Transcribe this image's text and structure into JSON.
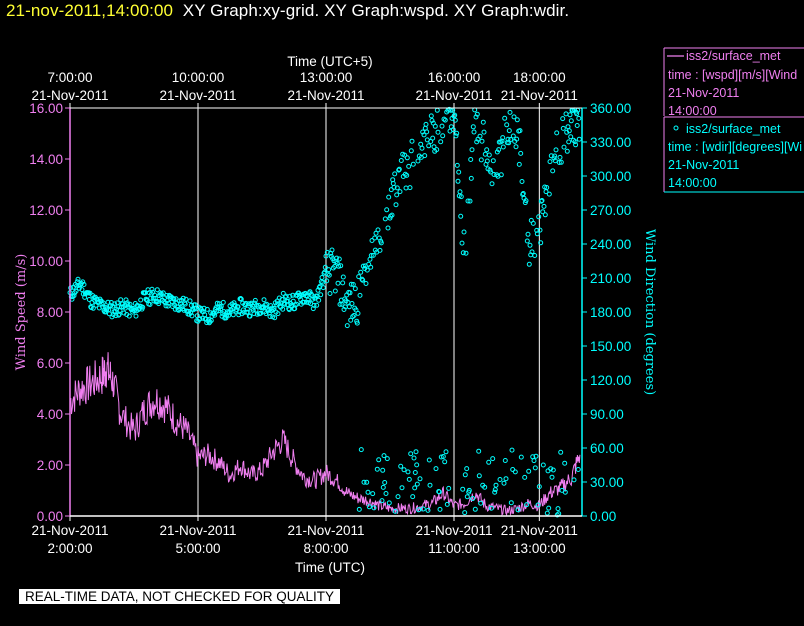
{
  "header": {
    "timestamp": "21-nov-2011,14:00:00",
    "graphs": "XY Graph:xy-grid.  XY Graph:wspd.  XY Graph:wdir."
  },
  "colors": {
    "background": "#000000",
    "axis": "#ffffff",
    "wspd": "#f07ff0",
    "wdir": "#00ffff",
    "timestamp": "#ffff33"
  },
  "banner": "REAL-TIME DATA, NOT CHECKED FOR QUALITY",
  "legend": {
    "wspd": {
      "line1": "iss2/surface_met",
      "line2": "time : [wspd][m/s][Wind",
      "line3": "21-Nov-2011",
      "line4": "14:00:00"
    },
    "wdir": {
      "line1": "iss2/surface_met",
      "line2": "time : [wdir][degrees][Wi",
      "line3": "21-Nov-2011",
      "line4": "14:00:00"
    }
  },
  "chart_data": {
    "type": "line",
    "top_axis_label": "Time (UTC+5)",
    "top_ticks": [
      {
        "time": "7:00:00",
        "date": "21-Nov-2011",
        "utc_hour": 2
      },
      {
        "time": "10:00:00",
        "date": "21-Nov-2011",
        "utc_hour": 5
      },
      {
        "time": "13:00:00",
        "date": "21-Nov-2011",
        "utc_hour": 8
      },
      {
        "time": "16:00:00",
        "date": "21-Nov-2011",
        "utc_hour": 11
      },
      {
        "time": "18:00:00",
        "date": "21-Nov-2011",
        "utc_hour": 13
      }
    ],
    "xlabel": "Time (UTC)",
    "x_ticks": [
      {
        "date": "21-Nov-2011",
        "time": "2:00:00",
        "utc_hour": 2
      },
      {
        "date": "21-Nov-2011",
        "time": "5:00:00",
        "utc_hour": 5
      },
      {
        "date": "21-Nov-2011",
        "time": "8:00:00",
        "utc_hour": 8
      },
      {
        "date": "21-Nov-2011",
        "time": "11:00:00",
        "utc_hour": 11
      },
      {
        "date": "21-Nov-2011",
        "time": "13:00:00",
        "utc_hour": 13
      }
    ],
    "xlim_utc_hours": [
      2.0,
      14.0
    ],
    "grid_verticals_utc_hours": [
      5,
      8,
      11,
      13
    ],
    "ylabel_left": "Wind Speed (m/s)",
    "ylim_left": [
      0,
      16
    ],
    "yticks_left": [
      "0.00",
      "2.00",
      "4.00",
      "6.00",
      "8.00",
      "10.00",
      "12.00",
      "14.00",
      "16.00"
    ],
    "ylabel_right": "Wind Direction (degrees)",
    "ylim_right": [
      0,
      360
    ],
    "yticks_right": [
      "0.00",
      "30.00",
      "60.00",
      "90.00",
      "120.00",
      "150.00",
      "180.00",
      "210.00",
      "240.00",
      "270.00",
      "300.00",
      "330.00",
      "360.00"
    ],
    "series": [
      {
        "name": "iss2/surface_met time : [wspd][m/s]",
        "axis": "left",
        "style": "line",
        "x": [
          2.0,
          2.25,
          2.5,
          2.75,
          2.85,
          3.0,
          3.2,
          3.5,
          3.75,
          4.0,
          4.25,
          4.5,
          4.75,
          5.0,
          5.25,
          5.5,
          5.75,
          6.0,
          6.25,
          6.5,
          6.75,
          7.0,
          7.25,
          7.5,
          7.75,
          8.0,
          8.25,
          8.5,
          8.75,
          9.0,
          9.25,
          9.5,
          9.75,
          10.0,
          10.25,
          10.5,
          10.75,
          11.0,
          11.25,
          11.5,
          11.75,
          12.0,
          12.25,
          12.5,
          12.75,
          13.0,
          13.25,
          13.5,
          13.75,
          13.95
        ],
        "y": [
          4.5,
          5.0,
          5.2,
          5.5,
          5.8,
          5.3,
          4.0,
          3.3,
          4.2,
          4.6,
          4.3,
          3.7,
          3.3,
          2.3,
          2.4,
          2.1,
          1.6,
          2.0,
          1.6,
          1.8,
          2.5,
          3.0,
          2.1,
          1.5,
          1.4,
          1.7,
          1.4,
          0.9,
          0.7,
          0.6,
          0.4,
          0.3,
          0.3,
          0.3,
          0.4,
          0.5,
          0.9,
          0.4,
          0.5,
          0.9,
          0.4,
          0.3,
          0.2,
          0.3,
          0.5,
          0.4,
          0.9,
          1.1,
          1.5,
          2.4
        ]
      },
      {
        "name": "iss2/surface_met time : [wdir][degrees]",
        "axis": "right",
        "style": "circles",
        "x": [
          2.0,
          2.25,
          2.5,
          2.75,
          3.0,
          3.25,
          3.5,
          3.75,
          4.0,
          4.25,
          4.5,
          4.75,
          5.0,
          5.25,
          5.5,
          5.75,
          6.0,
          6.25,
          6.5,
          6.75,
          7.0,
          7.25,
          7.5,
          7.75,
          8.0,
          8.25,
          8.5,
          8.75,
          9.0,
          9.25,
          9.5,
          9.75,
          10.0,
          10.25,
          10.5,
          10.75,
          11.0,
          11.25,
          11.5,
          11.75,
          12.0,
          12.25,
          12.5,
          12.75,
          13.0,
          13.25,
          13.5,
          13.75,
          13.95
        ],
        "y": [
          195,
          205,
          190,
          185,
          182,
          185,
          180,
          192,
          195,
          190,
          188,
          185,
          178,
          176,
          183,
          180,
          185,
          183,
          186,
          180,
          190,
          188,
          195,
          188,
          215,
          215,
          185,
          190,
          225,
          235,
          270,
          300,
          310,
          330,
          340,
          345,
          350,
          230,
          350,
          320,
          300,
          345,
          340,
          240,
          250,
          300,
          330,
          345,
          350
        ]
      }
    ]
  }
}
